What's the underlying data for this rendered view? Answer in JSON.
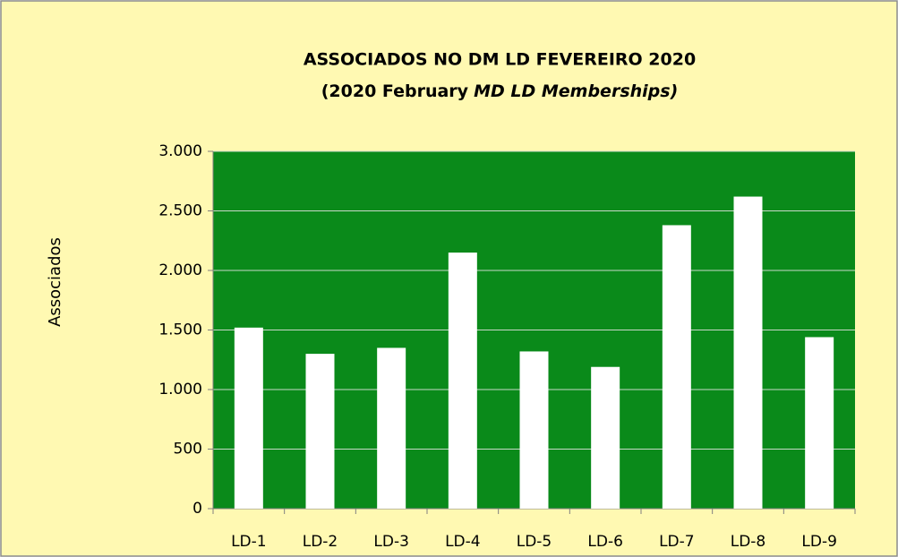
{
  "chart_data": {
    "type": "bar",
    "title": "ASSOCIADOS NO DM LD FEVEREIRO 2020",
    "subtitle": [
      "(2020 February",
      "MD LD Memberships)"
    ],
    "y_label": "Associados",
    "categories": [
      "LD-1",
      "LD-2",
      "LD-3",
      "LD-4",
      "LD-5",
      "LD-6",
      "LD-7",
      "LD-8",
      "LD-9"
    ],
    "values": [
      1520,
      1300,
      1350,
      2150,
      1320,
      1190,
      2380,
      2620,
      1440
    ],
    "color": "#ffffff",
    "plot_color": "#0a8a1a",
    "ylim": [
      0,
      3000
    ],
    "yticks": [
      0,
      500,
      {
        "value": 1000,
        "label": "1.000"
      },
      {
        "value": 1500,
        "label": "1.500"
      },
      {
        "value": 2000,
        "label": "2.000"
      },
      {
        "value": 2500,
        "label": "2.500"
      },
      {
        "value": 3000,
        "label": "3.000"
      }
    ],
    "grid": true
  }
}
